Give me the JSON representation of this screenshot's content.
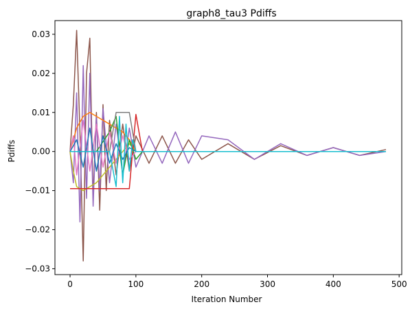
{
  "chart_data": {
    "type": "line",
    "title": "graph8_tau3 Pdiffs",
    "xlabel": "Iteration Number",
    "ylabel": "Pdiffs",
    "xlim": [
      -23,
      504
    ],
    "ylim": [
      -0.0315,
      0.0335
    ],
    "xticks": [
      0,
      100,
      200,
      300,
      400,
      500
    ],
    "xtick_labels": [
      "0",
      "100",
      "200",
      "300",
      "400",
      "500"
    ],
    "yticks": [
      -0.03,
      -0.02,
      -0.01,
      0.0,
      0.01,
      0.02,
      0.03
    ],
    "ytick_labels": [
      "−0.03",
      "−0.02",
      "−0.01",
      "0.00",
      "0.01",
      "0.02",
      "0.03"
    ],
    "grid": false,
    "legend": "none",
    "x_range_of_series": [
      0,
      480
    ],
    "notes_visible": "many overlapping series; brown and purple noisy traces converge toward 0; cyan line flat at 0",
    "series": [
      {
        "color": "#8c564b",
        "x": [
          0,
          5,
          10,
          15,
          20,
          25,
          30,
          35,
          40,
          45,
          50,
          55,
          60,
          70,
          80,
          90,
          100,
          120,
          140,
          160,
          180,
          200,
          240,
          280,
          320,
          360,
          400,
          440,
          480
        ],
        "values": [
          0.0,
          0.012,
          0.031,
          0.005,
          -0.028,
          0.02,
          0.029,
          -0.012,
          0.01,
          -0.015,
          0.012,
          -0.01,
          0.008,
          -0.006,
          0.007,
          -0.005,
          0.004,
          -0.003,
          0.004,
          -0.003,
          0.003,
          -0.002,
          0.002,
          -0.002,
          0.0015,
          -0.001,
          0.001,
          -0.001,
          0.0005
        ]
      },
      {
        "color": "#9467bd",
        "x": [
          0,
          5,
          10,
          15,
          20,
          25,
          30,
          35,
          40,
          45,
          50,
          60,
          70,
          80,
          90,
          100,
          120,
          140,
          160,
          180,
          200,
          240,
          280,
          320,
          360,
          400,
          440,
          480
        ],
        "values": [
          0.0,
          -0.008,
          0.015,
          -0.018,
          0.022,
          -0.012,
          0.02,
          -0.014,
          0.009,
          -0.01,
          0.011,
          -0.008,
          0.007,
          -0.006,
          0.006,
          -0.004,
          0.004,
          -0.003,
          0.005,
          -0.003,
          0.004,
          0.003,
          -0.002,
          0.002,
          -0.001,
          0.001,
          -0.001,
          0.0
        ]
      },
      {
        "color": "#bcbd22",
        "x": [
          0,
          5,
          10,
          20,
          30,
          40,
          50,
          60,
          70,
          80,
          90,
          100
        ],
        "values": [
          0.0,
          -0.005,
          -0.009,
          -0.01,
          -0.009,
          -0.008,
          -0.006,
          -0.004,
          -0.002,
          0.0,
          0.002,
          0.0
        ]
      },
      {
        "color": "#ff7f0e",
        "x": [
          0,
          10,
          20,
          30,
          40,
          50,
          60,
          70,
          80,
          90,
          100
        ],
        "values": [
          0.0,
          0.006,
          0.009,
          0.01,
          0.009,
          0.008,
          0.007,
          0.006,
          0.005,
          0.003,
          0.0
        ]
      },
      {
        "color": "#d62728",
        "x": [
          0,
          10,
          20,
          40,
          60,
          80,
          90,
          100,
          110
        ],
        "values": [
          -0.0095,
          -0.0095,
          -0.0095,
          -0.0095,
          -0.0095,
          -0.0095,
          -0.0095,
          0.0095,
          0.0
        ]
      },
      {
        "color": "#2ca02c",
        "x": [
          0,
          20,
          40,
          60,
          70,
          80,
          90,
          100,
          110
        ],
        "values": [
          0.0,
          0.0,
          0.0,
          0.005,
          0.009,
          -0.006,
          0.003,
          -0.002,
          0.0
        ]
      },
      {
        "color": "#7f7f7f",
        "x": [
          0,
          20,
          40,
          60,
          70,
          80,
          90,
          100
        ],
        "values": [
          0.0,
          0.0,
          0.0,
          0.0,
          0.01,
          0.01,
          0.01,
          0.0
        ]
      },
      {
        "color": "#e377c2",
        "x": [
          0,
          5,
          10,
          20,
          30,
          40,
          50,
          60,
          70,
          80,
          90,
          100
        ],
        "values": [
          0.0,
          0.004,
          -0.006,
          0.008,
          -0.005,
          0.007,
          -0.004,
          0.005,
          -0.003,
          0.004,
          -0.002,
          0.0
        ]
      },
      {
        "color": "#1f77b4",
        "x": [
          0,
          10,
          20,
          30,
          40,
          50,
          60,
          70,
          80,
          90,
          100
        ],
        "values": [
          0.0,
          0.003,
          -0.004,
          0.006,
          -0.005,
          0.004,
          -0.003,
          0.002,
          -0.002,
          0.001,
          0.0
        ]
      },
      {
        "color": "#17becf",
        "x": [
          0,
          60,
          70,
          75,
          80,
          85,
          90,
          95,
          100,
          110,
          480
        ],
        "values": [
          0.0,
          0.0,
          -0.009,
          0.009,
          -0.008,
          0.007,
          -0.005,
          0.003,
          0.0,
          0.0,
          0.0
        ]
      }
    ]
  }
}
